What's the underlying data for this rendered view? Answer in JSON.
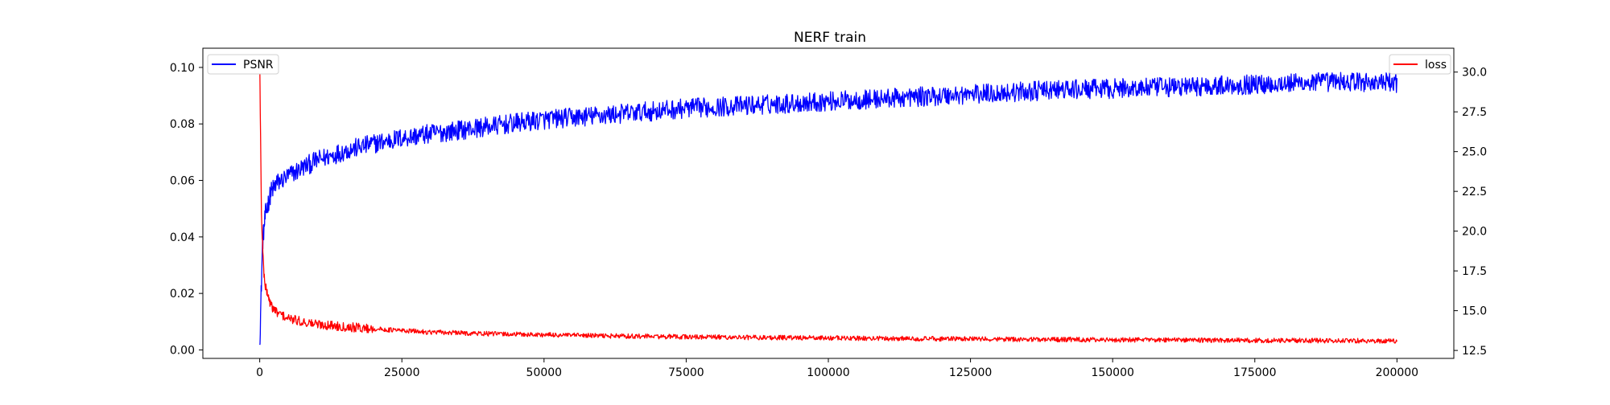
{
  "chart_data": {
    "type": "line",
    "title": "NERF train",
    "xlabel": "",
    "ylabel_left": "",
    "ylabel_right": "",
    "xlim": [
      -10000,
      210000
    ],
    "ylim_left": [
      -0.003,
      0.1068
    ],
    "ylim_right": [
      12.0,
      31.5
    ],
    "x_ticks": [
      0,
      25000,
      50000,
      75000,
      100000,
      125000,
      150000,
      175000,
      200000
    ],
    "x_tick_labels": [
      "0",
      "25000",
      "50000",
      "75000",
      "100000",
      "125000",
      "150000",
      "175000",
      "200000"
    ],
    "y_left_ticks": [
      0.0,
      0.02,
      0.04,
      0.06,
      0.08,
      0.1
    ],
    "y_left_tick_labels": [
      "0.00",
      "0.02",
      "0.04",
      "0.06",
      "0.08",
      "0.10"
    ],
    "y_right_ticks": [
      12.5,
      15.0,
      17.5,
      20.0,
      22.5,
      25.0,
      27.5,
      30.0
    ],
    "y_right_tick_labels": [
      "12.5",
      "15.0",
      "17.5",
      "20.0",
      "22.5",
      "25.0",
      "27.5",
      "30.0"
    ],
    "grid": false,
    "series": [
      {
        "name": "PSNR",
        "axis": "left",
        "color": "#0000ff",
        "legend_position": "upper-left",
        "x": [
          0,
          500,
          1000,
          2000,
          3000,
          5000,
          7500,
          10000,
          15000,
          20000,
          25000,
          30000,
          40000,
          50000,
          60000,
          75000,
          90000,
          100000,
          110000,
          125000,
          140000,
          150000,
          160000,
          175000,
          190000,
          200000
        ],
        "y": [
          0.0018,
          0.038,
          0.048,
          0.056,
          0.059,
          0.0615,
          0.0645,
          0.067,
          0.0705,
          0.073,
          0.075,
          0.0765,
          0.079,
          0.0815,
          0.083,
          0.0855,
          0.087,
          0.088,
          0.089,
          0.0905,
          0.092,
          0.0925,
          0.093,
          0.094,
          0.095,
          0.0945
        ],
        "noise_amplitude": 0.0035
      },
      {
        "name": "loss",
        "axis": "right",
        "color": "#ff0000",
        "legend_position": "upper-right",
        "x": [
          0,
          300,
          700,
          1000,
          2000,
          3000,
          5000,
          7500,
          10000,
          15000,
          20000,
          25000,
          30000,
          40000,
          50000,
          60000,
          75000,
          100000,
          125000,
          150000,
          175000,
          200000
        ],
        "y": [
          30.8,
          21.0,
          17.5,
          16.5,
          15.3,
          14.9,
          14.5,
          14.3,
          14.15,
          14.0,
          13.85,
          13.75,
          13.65,
          13.55,
          13.48,
          13.42,
          13.35,
          13.28,
          13.22,
          13.17,
          13.13,
          13.1
        ],
        "noise_amplitude": 0.15
      }
    ]
  }
}
